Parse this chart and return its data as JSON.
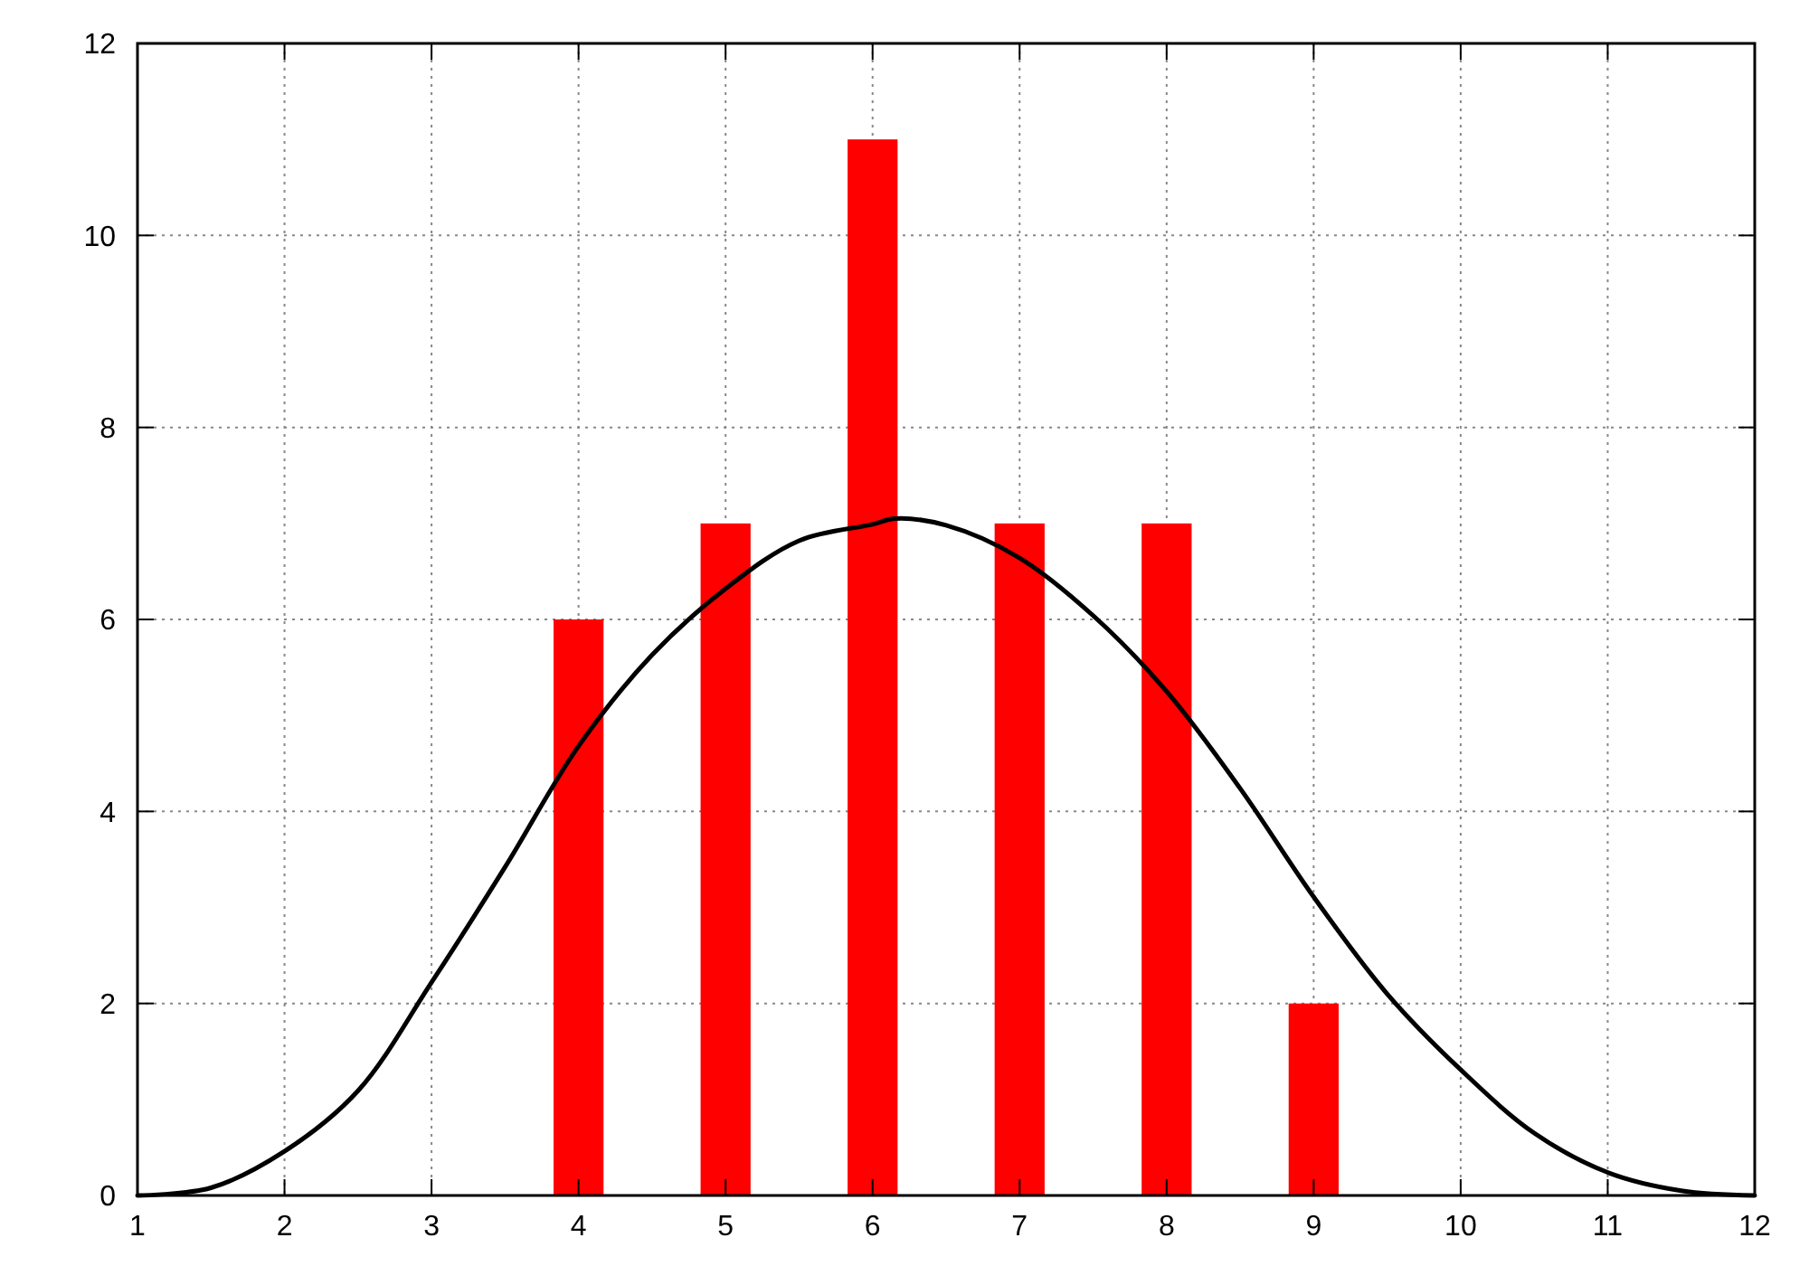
{
  "chart_data": {
    "type": "bar",
    "x": [
      4,
      5,
      6,
      7,
      8,
      9
    ],
    "series": [
      {
        "color": "#ff0000",
        "values": [
          6,
          7,
          11,
          7,
          7,
          2
        ]
      },
      {
        "type": "line",
        "color": "#000000",
        "x": [
          1,
          1.5,
          2,
          2.5,
          3,
          3.5,
          4,
          4.5,
          5,
          5.5,
          6,
          6.15,
          6.5,
          7,
          7.5,
          8,
          8.5,
          9,
          9.5,
          10,
          10.5,
          11,
          11.5,
          12
        ],
        "values": [
          0,
          0.08,
          0.46,
          1.09,
          2.22,
          3.42,
          4.68,
          5.63,
          6.32,
          6.82,
          6.99,
          7.05,
          6.98,
          6.64,
          6.04,
          5.25,
          4.24,
          3.11,
          2.1,
          1.31,
          0.65,
          0.24,
          0.05,
          0
        ]
      }
    ],
    "xlim": [
      1,
      12
    ],
    "xticks": [
      1,
      2,
      3,
      4,
      5,
      6,
      7,
      8,
      9,
      10,
      11,
      12
    ],
    "ylim": [
      0,
      12
    ],
    "yticks": [
      0,
      2,
      4,
      6,
      8,
      10,
      12
    ],
    "grid": true,
    "marker": "none",
    "line_style": "solid"
  }
}
